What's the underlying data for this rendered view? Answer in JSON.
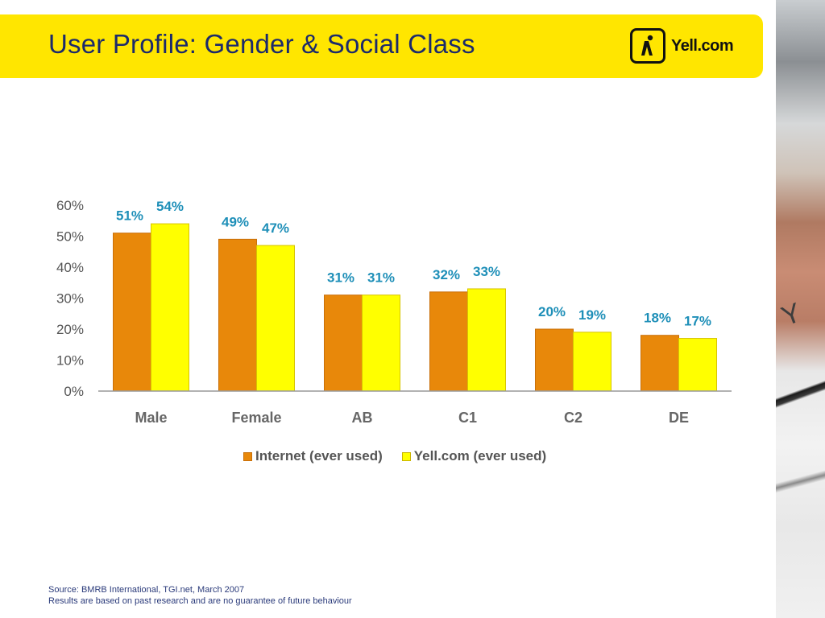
{
  "header": {
    "title": "User Profile: Gender & Social Class",
    "logo_text": "Yell.com",
    "brand_color": "#ffe600",
    "title_color": "#1c2a6b"
  },
  "chart_data": {
    "type": "bar",
    "categories": [
      "Male",
      "Female",
      "AB",
      "C1",
      "C2",
      "DE"
    ],
    "series": [
      {
        "name": "Internet (ever used)",
        "values": [
          51,
          49,
          31,
          32,
          20,
          18
        ],
        "color": "#e8880a"
      },
      {
        "name": "Yell.com (ever used)",
        "values": [
          54,
          47,
          31,
          33,
          19,
          17
        ],
        "color": "#ffff00"
      }
    ],
    "data_labels": [
      [
        "51%",
        "49%",
        "31%",
        "32%",
        "20%",
        "18%"
      ],
      [
        "54%",
        "47%",
        "31%",
        "33%",
        "19%",
        "17%"
      ]
    ],
    "yticks": [
      "0%",
      "10%",
      "20%",
      "30%",
      "40%",
      "50%",
      "60%"
    ],
    "ylim": [
      0,
      60
    ],
    "legend_position": "bottom",
    "grid": false,
    "label_color": "#1e8fb8"
  },
  "footer": {
    "source_line1": "Source: BMRB International,  TGI.net, March 2007",
    "source_line2": "Results are based on past research and are no guarantee of future behaviour"
  },
  "photo": {
    "key_letter": "Y"
  }
}
